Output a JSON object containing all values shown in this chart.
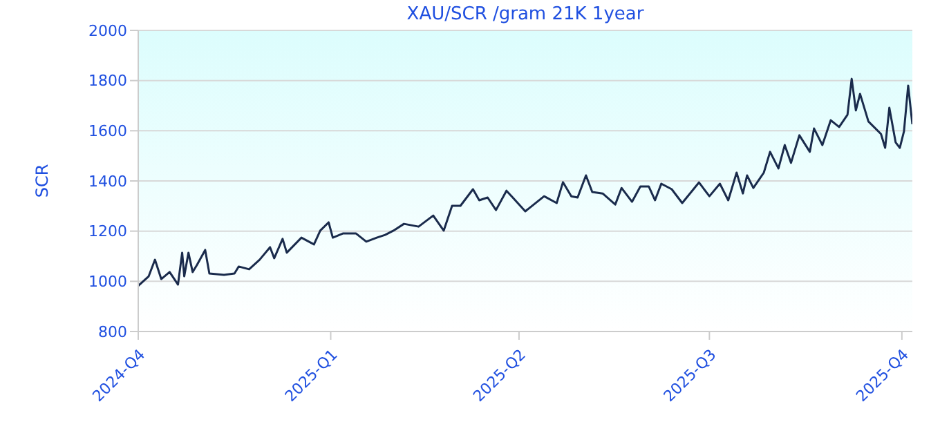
{
  "chart_data": {
    "type": "line",
    "title": "XAU/SCR /gram 21K 1year",
    "ylabel": "SCR",
    "x": [
      "2024-10-01",
      "2024-10-06",
      "2024-10-09",
      "2024-10-12",
      "2024-10-16",
      "2024-10-20",
      "2024-10-22",
      "2024-10-23",
      "2024-10-25",
      "2024-10-27",
      "2024-10-29",
      "2024-11-02",
      "2024-11-04",
      "2024-11-11",
      "2024-11-16",
      "2024-11-18",
      "2024-11-23",
      "2024-11-28",
      "2024-12-03",
      "2024-12-05",
      "2024-12-09",
      "2024-12-11",
      "2024-12-18",
      "2024-12-24",
      "2024-12-27",
      "2024-12-31",
      "2025-01-02",
      "2025-01-07",
      "2025-01-13",
      "2025-01-18",
      "2025-01-23",
      "2025-01-27",
      "2025-01-31",
      "2025-02-05",
      "2025-02-12",
      "2025-02-19",
      "2025-02-24",
      "2025-02-28",
      "2025-03-04",
      "2025-03-10",
      "2025-03-13",
      "2025-03-17",
      "2025-03-21",
      "2025-03-26",
      "2025-03-29",
      "2025-04-04",
      "2025-04-13",
      "2025-04-19",
      "2025-04-22",
      "2025-04-26",
      "2025-04-29",
      "2025-05-03",
      "2025-05-06",
      "2025-05-11",
      "2025-05-17",
      "2025-05-20",
      "2025-05-25",
      "2025-05-29",
      "2025-06-02",
      "2025-06-05",
      "2025-06-08",
      "2025-06-13",
      "2025-06-18",
      "2025-06-26",
      "2025-07-01",
      "2025-07-06",
      "2025-07-10",
      "2025-07-14",
      "2025-07-17",
      "2025-07-19",
      "2025-07-22",
      "2025-07-27",
      "2025-07-30",
      "2025-08-03",
      "2025-08-06",
      "2025-08-09",
      "2025-08-13",
      "2025-08-18",
      "2025-08-20",
      "2025-08-24",
      "2025-08-28",
      "2025-09-01",
      "2025-09-05",
      "2025-09-07",
      "2025-09-09",
      "2025-09-11",
      "2025-09-15",
      "2025-09-21",
      "2025-09-23",
      "2025-09-25",
      "2025-09-28",
      "2025-09-30",
      "2025-10-02",
      "2025-10-04",
      "2025-10-06"
    ],
    "series": [
      {
        "color": "#1a2b4c",
        "values": [
          982,
          1020,
          1086,
          1009,
          1037,
          987,
          1114,
          1020,
          1114,
          1037,
          1064,
          1125,
          1031,
          1026,
          1031,
          1059,
          1048,
          1086,
          1136,
          1092,
          1169,
          1114,
          1174,
          1147,
          1202,
          1235,
          1174,
          1191,
          1191,
          1158,
          1174,
          1185,
          1202,
          1229,
          1218,
          1262,
          1202,
          1301,
          1301,
          1367,
          1323,
          1334,
          1284,
          1361,
          1334,
          1279,
          1339,
          1312,
          1395,
          1339,
          1334,
          1422,
          1356,
          1350,
          1306,
          1372,
          1317,
          1378,
          1378,
          1323,
          1389,
          1367,
          1312,
          1394,
          1339,
          1389,
          1323,
          1433,
          1350,
          1422,
          1372,
          1433,
          1516,
          1450,
          1543,
          1472,
          1582,
          1516,
          1609,
          1543,
          1642,
          1615,
          1664,
          1807,
          1681,
          1747,
          1637,
          1587,
          1532,
          1692,
          1554,
          1532,
          1598,
          1780,
          1626
        ]
      }
    ],
    "xlim": [
      "2024-10-01",
      "2025-10-06"
    ],
    "xticks": [
      {
        "value": "2024-10-01",
        "label": "2024-Q4"
      },
      {
        "value": "2025-01-01",
        "label": "2025-Q1"
      },
      {
        "value": "2025-04-01",
        "label": "2025-Q2"
      },
      {
        "value": "2025-07-01",
        "label": "2025-Q3"
      },
      {
        "value": "2025-10-01",
        "label": "2025-Q4"
      }
    ],
    "ylim": [
      800,
      2000
    ],
    "yticks": [
      800,
      1000,
      1200,
      1400,
      1600,
      1800,
      2000
    ],
    "grid": "y",
    "legend": false,
    "marker": "none",
    "line_style": "solid"
  }
}
